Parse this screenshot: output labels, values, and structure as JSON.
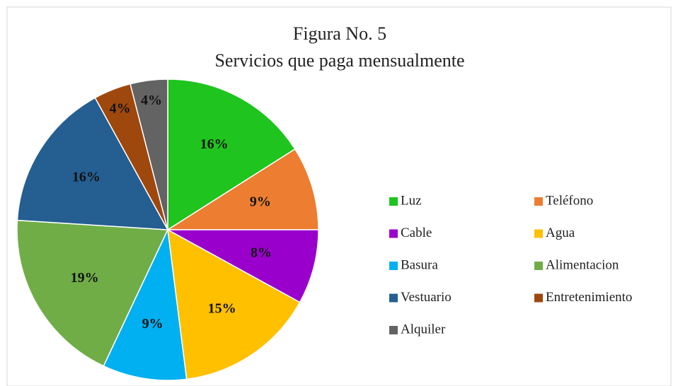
{
  "chart_data": {
    "type": "pie",
    "title": "Figura No. 5",
    "subtitle": "Servicios que paga mensualmente",
    "categories": [
      "Luz",
      "Teléfono",
      "Cable",
      "Agua",
      "Basura",
      "Alimentacion",
      "Vestuario",
      "Entretenimiento",
      "Alquiler"
    ],
    "values": [
      16,
      9,
      8,
      15,
      9,
      19,
      16,
      4,
      4
    ],
    "value_labels": [
      "16%",
      "9%",
      "8%",
      "15%",
      "9%",
      "19%",
      "16%",
      "4%",
      "4%"
    ],
    "colors": [
      "#1fc41f",
      "#ed7d31",
      "#9a00cc",
      "#ffc000",
      "#00b0f0",
      "#70ad47",
      "#255e91",
      "#9e480e",
      "#636363"
    ],
    "legend": "right"
  }
}
